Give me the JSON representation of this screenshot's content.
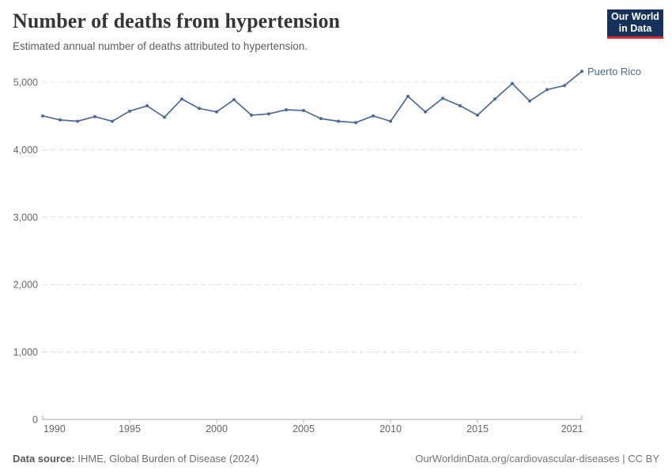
{
  "header": {
    "title": "Number of deaths from hypertension",
    "subtitle": "Estimated annual number of deaths attributed to hypertension.",
    "logo": {
      "line1": "Our World",
      "line2": "in Data"
    }
  },
  "footer": {
    "source_label": "Data source:",
    "source_text": " IHME, Global Burden of Disease (2024)",
    "credit": "OurWorldinData.org/cardiovascular-diseases | CC BY"
  },
  "colors": {
    "line": "#4C6A9C",
    "entity_label": "#4C6A9C",
    "gridline": "#dddddd",
    "axis": "#a9a9a9",
    "tick": "#b5b5b5",
    "axis_text": "#666666",
    "logo_bg": "#16325a",
    "logo_stripe": "#e0232e"
  },
  "chart_data": {
    "type": "line",
    "title": "Number of deaths from hypertension",
    "subtitle": "Estimated annual number of deaths attributed to hypertension.",
    "x": [
      1990,
      1991,
      1992,
      1993,
      1994,
      1995,
      1996,
      1997,
      1998,
      1999,
      2000,
      2001,
      2002,
      2003,
      2004,
      2005,
      2006,
      2007,
      2008,
      2009,
      2010,
      2011,
      2012,
      2013,
      2014,
      2015,
      2016,
      2017,
      2018,
      2019,
      2020,
      2021
    ],
    "series": [
      {
        "name": "Puerto Rico",
        "color": "#4C6A9C",
        "values": [
          4500,
          4440,
          4420,
          4490,
          4420,
          4570,
          4650,
          4480,
          4750,
          4610,
          4560,
          4740,
          4510,
          4530,
          4590,
          4580,
          4460,
          4420,
          4400,
          4500,
          4420,
          4790,
          4560,
          4760,
          4650,
          4510,
          4750,
          4980,
          4720,
          4890,
          4950,
          5160
        ]
      }
    ],
    "xlim": [
      1990,
      2021
    ],
    "ylim": [
      0,
      5000
    ],
    "x_ticks": [
      1990,
      1995,
      2000,
      2005,
      2010,
      2015,
      2021
    ],
    "y_ticks": [
      0,
      1000,
      2000,
      3000,
      4000,
      5000
    ],
    "grid": "horizontal-dashed",
    "legend_position": "end-of-line-label"
  }
}
